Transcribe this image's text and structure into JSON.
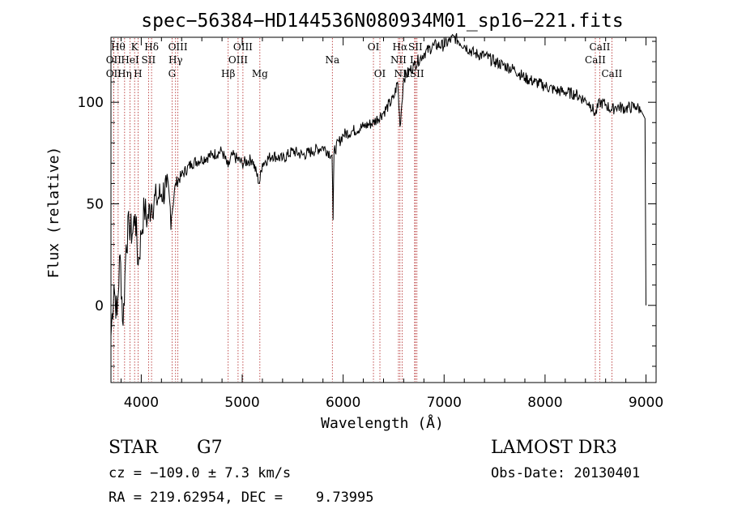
{
  "chart_data": {
    "type": "line",
    "title": "spec−56384−HD144536N080934M01_sp16−221.fits",
    "xlabel": "Wavelength (Å)",
    "ylabel": "Flux (relative)",
    "xlim": [
      3700,
      9100
    ],
    "ylim": [
      -38,
      132
    ],
    "xticks": [
      {
        "value": 4000,
        "label": "4000"
      },
      {
        "value": 5000,
        "label": "5000"
      },
      {
        "value": 6000,
        "label": "6000"
      },
      {
        "value": 7000,
        "label": "7000"
      },
      {
        "value": 8000,
        "label": "8000"
      },
      {
        "value": 9000,
        "label": "9000"
      }
    ],
    "yticks": [
      {
        "value": 0,
        "label": "0"
      },
      {
        "value": 50,
        "label": "50"
      },
      {
        "value": 100,
        "label": "100"
      }
    ],
    "series": [
      {
        "name": "flux",
        "x": [
          3700,
          3730,
          3760,
          3790,
          3820,
          3850,
          3880,
          3910,
          3940,
          3970,
          4000,
          4030,
          4060,
          4100,
          4150,
          4200,
          4250,
          4300,
          4340,
          4400,
          4500,
          4600,
          4700,
          4800,
          4860,
          4900,
          5000,
          5100,
          5170,
          5200,
          5300,
          5400,
          5500,
          5600,
          5700,
          5800,
          5890,
          5900,
          5910,
          6000,
          6100,
          6200,
          6300,
          6400,
          6500,
          6540,
          6563,
          6600,
          6700,
          6800,
          6900,
          7000,
          7100,
          7200,
          7300,
          7400,
          7500,
          7600,
          7700,
          7800,
          7900,
          8000,
          8100,
          8200,
          8300,
          8400,
          8450,
          8498,
          8542,
          8600,
          8662,
          8700,
          8800,
          8900,
          8950,
          8990,
          9000
        ],
        "values": [
          -15,
          10,
          -5,
          25,
          -10,
          30,
          40,
          35,
          45,
          20,
          35,
          48,
          42,
          50,
          52,
          55,
          58,
          44,
          60,
          64,
          70,
          72,
          74,
          76,
          68,
          74,
          70,
          72,
          60,
          70,
          74,
          72,
          76,
          74,
          76,
          78,
          74,
          42,
          76,
          84,
          86,
          88,
          90,
          95,
          102,
          110,
          88,
          112,
          118,
          124,
          128,
          128,
          132,
          128,
          124,
          123,
          120,
          118,
          116,
          112,
          110,
          108,
          106,
          105,
          104,
          101,
          99,
          94,
          100,
          99,
          96,
          98,
          97,
          98,
          96,
          92,
          0
        ]
      }
    ],
    "line_color": "#000000",
    "marker_color": "#b02020",
    "annotations": [
      {
        "wave": 3771,
        "label": "Hθ",
        "row": 1
      },
      {
        "wave": 3727,
        "label": "OII",
        "row": 2
      },
      {
        "wave": 3727,
        "label": "OII",
        "row": 3
      },
      {
        "wave": 3934,
        "label": "K",
        "row": 1
      },
      {
        "wave": 3889,
        "label": "HeI",
        "row": 2
      },
      {
        "wave": 3835,
        "label": "Hη",
        "row": 3
      },
      {
        "wave": 4102,
        "label": "Hδ",
        "row": 1
      },
      {
        "wave": 4072,
        "label": "SII",
        "row": 2
      },
      {
        "wave": 3968,
        "label": "H",
        "row": 3
      },
      {
        "wave": 4363,
        "label": "OIII",
        "row": 1
      },
      {
        "wave": 4340,
        "label": "Hγ",
        "row": 2
      },
      {
        "wave": 4305,
        "label": "G",
        "row": 3
      },
      {
        "wave": 5007,
        "label": "OIII",
        "row": 1
      },
      {
        "wave": 4959,
        "label": "OIII",
        "row": 2
      },
      {
        "wave": 4861,
        "label": "Hβ",
        "row": 3
      },
      {
        "wave": 5175,
        "label": "Mg",
        "row": 3
      },
      {
        "wave": 5893,
        "label": "Na",
        "row": 2
      },
      {
        "wave": 6300,
        "label": "OI",
        "row": 1
      },
      {
        "wave": 6364,
        "label": "OI",
        "row": 3
      },
      {
        "wave": 6563,
        "label": "Hα",
        "row": 1
      },
      {
        "wave": 6716,
        "label": "SII",
        "row": 1
      },
      {
        "wave": 6548,
        "label": "NII",
        "row": 2
      },
      {
        "wave": 6708,
        "label": "Li",
        "row": 2
      },
      {
        "wave": 6584,
        "label": "NII",
        "row": 3
      },
      {
        "wave": 6731,
        "label": "SII",
        "row": 3
      },
      {
        "wave": 8542,
        "label": "CaII",
        "row": 1
      },
      {
        "wave": 8498,
        "label": "CaII",
        "row": 2
      },
      {
        "wave": 8662,
        "label": "CaII",
        "row": 3
      }
    ]
  },
  "info": {
    "object_class": "STAR",
    "subclass": "G7",
    "survey": "LAMOST DR3",
    "cz": "cz = −109.0 ± 7.3 km/s",
    "obs_date": "Obs-Date: 20130401",
    "coords": "RA = 219.62954, DEC =    9.73995"
  }
}
